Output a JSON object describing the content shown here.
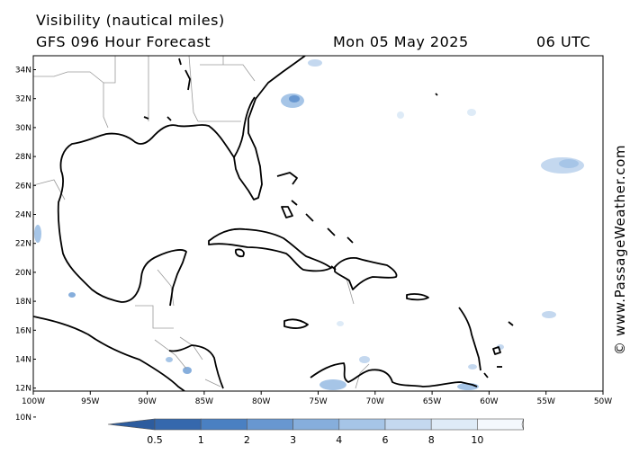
{
  "header": {
    "title": "Visibility (nautical miles)",
    "forecast": "GFS 096 Hour Forecast",
    "date": "Mon 05 May 2025",
    "time": "06 UTC"
  },
  "credit": "© www.PassageWeather.com",
  "axes": {
    "lat_labels": [
      "34N",
      "32N",
      "30N",
      "28N",
      "26N",
      "24N",
      "22N",
      "20N",
      "18N",
      "16N",
      "14N",
      "12N",
      "10N"
    ],
    "lon_labels": [
      "100W",
      "95W",
      "90W",
      "85W",
      "80W",
      "75W",
      "70W",
      "65W",
      "60W",
      "55W",
      "50W"
    ]
  },
  "legend": {
    "labels": [
      "0.5",
      "1",
      "2",
      "3",
      "4",
      "6",
      "8",
      "10"
    ],
    "colors": [
      "#3568ad",
      "#4a80c2",
      "#6897d0",
      "#86aedc",
      "#a6c5e7",
      "#c4d8ef",
      "#deebf7",
      "#f4f8fd"
    ]
  }
}
